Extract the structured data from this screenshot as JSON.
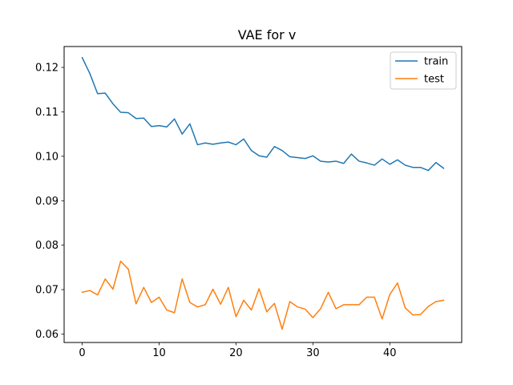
{
  "chart_data": {
    "type": "line",
    "title": "VAE for v",
    "xlabel": "",
    "ylabel": "",
    "xlim": [
      -2.35,
      49.35
    ],
    "ylim": [
      0.0581,
      0.1247
    ],
    "xticks": [
      0,
      10,
      20,
      30,
      40
    ],
    "yticks": [
      0.06,
      0.07,
      0.08,
      0.09,
      0.1,
      0.11,
      0.12
    ],
    "ytick_labels": [
      "0.06",
      "0.07",
      "0.08",
      "0.09",
      "0.10",
      "0.11",
      "0.12"
    ],
    "grid": false,
    "legend_position": "top-right",
    "x": [
      0,
      1,
      2,
      3,
      4,
      5,
      6,
      7,
      8,
      9,
      10,
      11,
      12,
      13,
      14,
      15,
      16,
      17,
      18,
      19,
      20,
      21,
      22,
      23,
      24,
      25,
      26,
      27,
      28,
      29,
      30,
      31,
      32,
      33,
      34,
      35,
      36,
      37,
      38,
      39,
      40,
      41,
      42,
      43,
      44,
      45,
      46,
      47
    ],
    "series": [
      {
        "name": "train",
        "color": "#1f77b4",
        "values": [
          0.1222,
          0.1186,
          0.1141,
          0.1142,
          0.1118,
          0.1099,
          0.1098,
          0.1085,
          0.1086,
          0.1067,
          0.1069,
          0.1066,
          0.1084,
          0.105,
          0.1073,
          0.1026,
          0.103,
          0.1027,
          0.103,
          0.1032,
          0.1026,
          0.1039,
          0.1013,
          0.1001,
          0.0998,
          0.1022,
          0.1013,
          0.0999,
          0.0997,
          0.0995,
          0.1001,
          0.0989,
          0.0987,
          0.0989,
          0.0984,
          0.1005,
          0.0989,
          0.0985,
          0.098,
          0.0994,
          0.0982,
          0.0992,
          0.098,
          0.0975,
          0.0975,
          0.0968,
          0.0986,
          0.0973
        ]
      },
      {
        "name": "test",
        "color": "#ff7f0e",
        "values": [
          0.0694,
          0.0698,
          0.0688,
          0.0724,
          0.0701,
          0.0764,
          0.0746,
          0.0668,
          0.0705,
          0.0671,
          0.0683,
          0.0654,
          0.0648,
          0.0724,
          0.0671,
          0.0661,
          0.0666,
          0.0701,
          0.0667,
          0.0705,
          0.0639,
          0.0676,
          0.0654,
          0.0702,
          0.065,
          0.0669,
          0.0611,
          0.0673,
          0.0661,
          0.0656,
          0.0637,
          0.0657,
          0.0694,
          0.0657,
          0.0666,
          0.0666,
          0.0666,
          0.0683,
          0.0683,
          0.0634,
          0.0689,
          0.0715,
          0.0659,
          0.0643,
          0.0644,
          0.0662,
          0.0673,
          0.0676
        ]
      }
    ]
  }
}
